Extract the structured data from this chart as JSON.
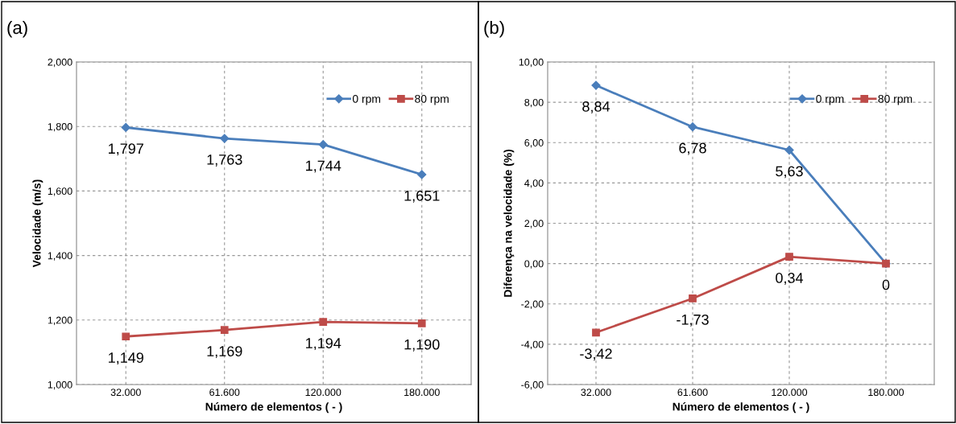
{
  "chart_data": [
    {
      "type": "line",
      "title": "(a)",
      "xlabel": "Número de elementos ( - )",
      "ylabel": "Velocidade (m/s)",
      "categories": [
        "32.000",
        "61.600",
        "120.000",
        "180.000"
      ],
      "series": [
        {
          "name": "0 rpm",
          "color": "#4a7ebb",
          "marker": "diamond",
          "values": [
            1.797,
            1.763,
            1.744,
            1.651
          ],
          "value_labels": [
            "1,797",
            "1,763",
            "1,744",
            "1,651"
          ]
        },
        {
          "name": "80 rpm",
          "color": "#be4b48",
          "marker": "square",
          "values": [
            1.149,
            1.169,
            1.194,
            1.19
          ],
          "value_labels": [
            "1,149",
            "1,169",
            "1,194",
            "1,190"
          ]
        }
      ],
      "ylim": [
        1.0,
        2.0
      ],
      "yticks": [
        {
          "value": 1.0,
          "label": "1,000"
        },
        {
          "value": 1.2,
          "label": "1,200"
        },
        {
          "value": 1.4,
          "label": "1,400"
        },
        {
          "value": 1.6,
          "label": "1,600"
        },
        {
          "value": 1.8,
          "label": "1,800"
        },
        {
          "value": 2.0,
          "label": "2,000"
        }
      ],
      "grid": true,
      "legend": "top right"
    },
    {
      "type": "line",
      "title": "(b)",
      "xlabel": "Número de elementos ( - )",
      "ylabel": "Diferença na velocidade (%)",
      "categories": [
        "32.000",
        "61.600",
        "120.000",
        "180.000"
      ],
      "series": [
        {
          "name": "0 rpm",
          "color": "#4a7ebb",
          "marker": "diamond",
          "values": [
            8.84,
            6.78,
            5.63,
            0
          ],
          "value_labels": [
            "8,84",
            "6,78",
            "5,63",
            null
          ]
        },
        {
          "name": "80 rpm",
          "color": "#be4b48",
          "marker": "square",
          "values": [
            -3.42,
            -1.73,
            0.34,
            0
          ],
          "value_labels": [
            "-3,42",
            "-1,73",
            "0,34",
            "0"
          ]
        }
      ],
      "ylim": [
        -6,
        10
      ],
      "yticks": [
        {
          "value": -6,
          "label": "-6,00"
        },
        {
          "value": -4,
          "label": "-4,00"
        },
        {
          "value": -2,
          "label": "-2,00"
        },
        {
          "value": 0,
          "label": "0,00"
        },
        {
          "value": 2,
          "label": "2,00"
        },
        {
          "value": 4,
          "label": "4,00"
        },
        {
          "value": 6,
          "label": "6,00"
        },
        {
          "value": 8,
          "label": "8,00"
        },
        {
          "value": 10,
          "label": "10,00"
        }
      ],
      "grid": true,
      "legend": "top right"
    }
  ]
}
